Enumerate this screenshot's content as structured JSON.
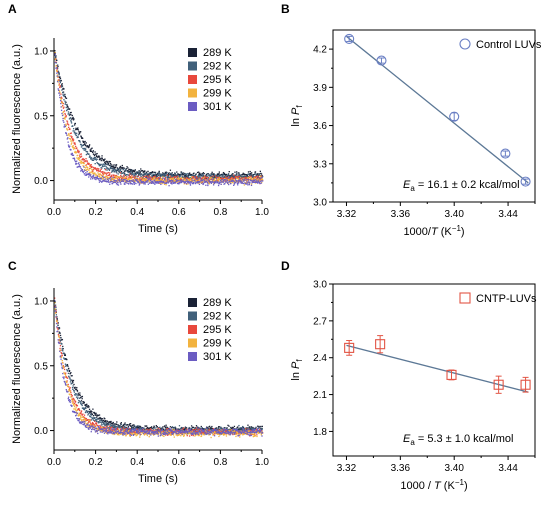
{
  "colors": {
    "289": "#1a2236",
    "292": "#40607a",
    "295": "#e8483c",
    "299": "#f2b33f",
    "301": "#6b5cc2",
    "control": "#6a7fc4",
    "cntp": "#e25545",
    "fit": "#5c7896"
  },
  "chart_data": [
    {
      "panel": "A",
      "type": "scatter",
      "xlabel": "Time (s)",
      "ylabel": "Normalized fluorescence (a.u.)",
      "xlim": [
        0,
        1.0
      ],
      "ylim": [
        -0.15,
        1.1
      ],
      "xticks": [
        "0.0",
        "0.2",
        "0.4",
        "0.6",
        "0.8",
        "1.0"
      ],
      "yticks": [
        "0.0",
        "0.5",
        "1.0"
      ],
      "legend_position": "top-right",
      "series": [
        {
          "name": "289 K",
          "color_key": "289",
          "tau": 0.11,
          "offset": 0.04
        },
        {
          "name": "292 K",
          "color_key": "292",
          "tau": 0.095,
          "offset": 0.03
        },
        {
          "name": "295 K",
          "color_key": "295",
          "tau": 0.075,
          "offset": 0.01
        },
        {
          "name": "299 K",
          "color_key": "299",
          "tau": 0.065,
          "offset": 0.0
        },
        {
          "name": "301 K",
          "color_key": "301",
          "tau": 0.055,
          "offset": -0.01
        }
      ]
    },
    {
      "panel": "B",
      "type": "scatter",
      "xlabel_main": "1000/",
      "xlabel_var": "T",
      "xlabel_unit": " (K",
      "xlabel_sup": "−1",
      "xlabel_end": ")",
      "ylabel_main": "ln ",
      "ylabel_var": "P",
      "ylabel_sub": "f",
      "xlim": [
        3.31,
        3.46
      ],
      "ylim": [
        3.0,
        4.35
      ],
      "xticks": [
        3.32,
        3.36,
        3.4,
        3.44
      ],
      "yticks": [
        3.0,
        3.3,
        3.6,
        3.9,
        4.2
      ],
      "legend": "Control LUVs",
      "legend_position": "top-right",
      "annotation_var": "E",
      "annotation_sub": "a",
      "annotation_text": " = 16.1 ± 0.2 kcal/mol",
      "points": [
        {
          "x": 3.322,
          "y": 4.28,
          "err": 0.02
        },
        {
          "x": 3.346,
          "y": 4.11,
          "err": 0.02
        },
        {
          "x": 3.4,
          "y": 3.67,
          "err": 0.03
        },
        {
          "x": 3.438,
          "y": 3.38,
          "err": 0.02
        },
        {
          "x": 3.453,
          "y": 3.16,
          "err": 0.02
        }
      ],
      "fit": [
        [
          3.32,
          4.3
        ],
        [
          3.455,
          3.15
        ]
      ]
    },
    {
      "panel": "C",
      "type": "scatter",
      "xlabel": "Time (s)",
      "ylabel": "Normalized fluorescence (a.u.)",
      "xlim": [
        0,
        1.0
      ],
      "ylim": [
        -0.15,
        1.1
      ],
      "xticks": [
        "0.0",
        "0.2",
        "0.4",
        "0.6",
        "0.8",
        "1.0"
      ],
      "yticks": [
        "0.0",
        "0.5",
        "1.0"
      ],
      "legend_position": "top-right",
      "series": [
        {
          "name": "289 K",
          "color_key": "289",
          "tau": 0.09,
          "offset": 0.01
        },
        {
          "name": "292 K",
          "color_key": "292",
          "tau": 0.08,
          "offset": 0.0
        },
        {
          "name": "295 K",
          "color_key": "295",
          "tau": 0.065,
          "offset": -0.01
        },
        {
          "name": "299 K",
          "color_key": "299",
          "tau": 0.06,
          "offset": -0.02
        },
        {
          "name": "301 K",
          "color_key": "301",
          "tau": 0.05,
          "offset": -0.01
        }
      ]
    },
    {
      "panel": "D",
      "type": "scatter",
      "xlabel_main": "1000 / ",
      "xlabel_var": "T",
      "xlabel_unit": " (K",
      "xlabel_sup": "−1",
      "xlabel_end": ")",
      "ylabel_main": "ln ",
      "ylabel_var": "P",
      "ylabel_sub": "f",
      "xlim": [
        3.31,
        3.46
      ],
      "ylim": [
        1.6,
        3.0
      ],
      "xticks": [
        3.32,
        3.36,
        3.4,
        3.44
      ],
      "yticks": [
        1.8,
        2.1,
        2.4,
        2.7,
        3.0
      ],
      "legend": "CNTP-LUVs",
      "legend_position": "top-right",
      "annotation_var": "E",
      "annotation_sub": "a",
      "annotation_text": " = 5.3 ± 1.0 kcal/mol",
      "points": [
        {
          "x": 3.322,
          "y": 2.48,
          "err": 0.06
        },
        {
          "x": 3.345,
          "y": 2.51,
          "err": 0.07
        },
        {
          "x": 3.398,
          "y": 2.26,
          "err": 0.04
        },
        {
          "x": 3.433,
          "y": 2.18,
          "err": 0.07
        },
        {
          "x": 3.453,
          "y": 2.18,
          "err": 0.06
        }
      ],
      "fit": [
        [
          3.32,
          2.5
        ],
        [
          3.455,
          2.12
        ]
      ]
    }
  ]
}
